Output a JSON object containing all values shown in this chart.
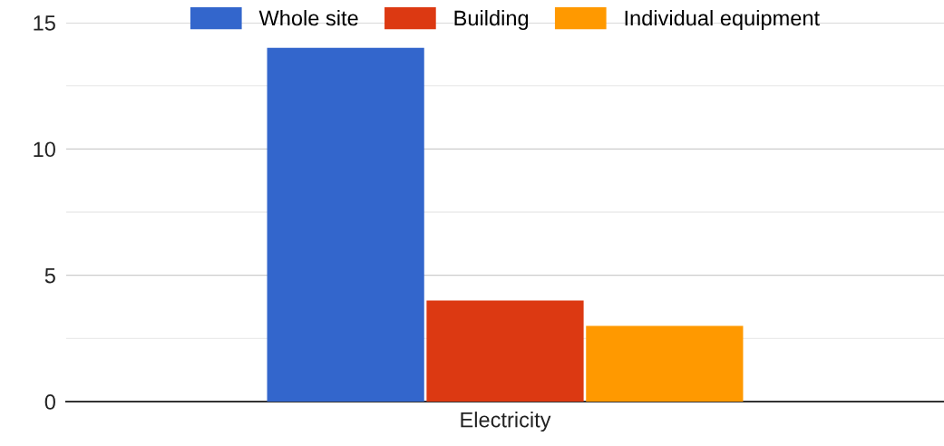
{
  "chart_data": {
    "type": "bar",
    "categories": [
      "Electricity"
    ],
    "series": [
      {
        "name": "Whole site",
        "color": "#3366cc",
        "values": [
          14
        ]
      },
      {
        "name": "Building",
        "color": "#dc3912",
        "values": [
          4
        ]
      },
      {
        "name": "Individual equipment",
        "color": "#ff9900",
        "values": [
          3
        ]
      }
    ],
    "ylim": [
      0,
      15
    ],
    "yticks": [
      0,
      {
        "value": 2.5,
        "label": null
      },
      5,
      {
        "value": 7.5,
        "label": null
      },
      10,
      {
        "value": 12.5,
        "label": null
      },
      15
    ],
    "grid": "y",
    "legend": "top"
  }
}
